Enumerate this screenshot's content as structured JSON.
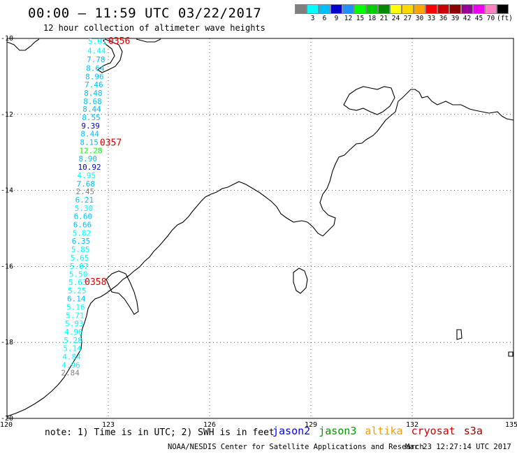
{
  "title": "00:00 – 11:59 UTC 03/22/2017",
  "subtitle": "12 hour collection of altimeter wave heights",
  "colorbar": {
    "colors": [
      "#7f7f7f",
      "#00ffff",
      "#00bfff",
      "#0000cd",
      "#1e90ff",
      "#00ff00",
      "#00cd00",
      "#008b00",
      "#ffff00",
      "#ffd700",
      "#ffa500",
      "#ff0000",
      "#cd0000",
      "#8b0000",
      "#990099",
      "#ee00ee",
      "#ff80c0",
      "#000000"
    ],
    "labels": [
      "",
      "3",
      "6",
      "9",
      "12",
      "15",
      "18",
      "21",
      "24",
      "27",
      "30",
      "33",
      "36",
      "39",
      "42",
      "45",
      "70",
      "(ft)"
    ]
  },
  "map": {
    "lon_ticks": [
      "120",
      "123",
      "126",
      "129",
      "132",
      "135"
    ],
    "lat_ticks": [
      "-10",
      "-12",
      "-14",
      "-16",
      "-18",
      "-20"
    ]
  },
  "time_labels": [
    {
      "text": "0356",
      "lon": 123.0,
      "lat": -10.07
    },
    {
      "text": "0357",
      "lon": 122.75,
      "lat": -12.75
    },
    {
      "text": "0358",
      "lon": 122.3,
      "lat": -16.42
    }
  ],
  "wave_values": [
    {
      "v": "5.01",
      "lon": 122.4,
      "lat": -10.07,
      "c": "#00ffff"
    },
    {
      "v": "4.44",
      "lon": 122.38,
      "lat": -10.32,
      "c": "#00ffff"
    },
    {
      "v": "7.78",
      "lon": 122.36,
      "lat": -10.55,
      "c": "#00bfff"
    },
    {
      "v": "8.64",
      "lon": 122.34,
      "lat": -10.78,
      "c": "#00bfff"
    },
    {
      "v": "8.96",
      "lon": 122.32,
      "lat": -11.0,
      "c": "#00bfff"
    },
    {
      "v": "7.46",
      "lon": 122.3,
      "lat": -11.21,
      "c": "#00bfff"
    },
    {
      "v": "8.48",
      "lon": 122.28,
      "lat": -11.43,
      "c": "#00bfff"
    },
    {
      "v": "8.68",
      "lon": 122.26,
      "lat": -11.65,
      "c": "#00bfff"
    },
    {
      "v": "8.44",
      "lon": 122.24,
      "lat": -11.86,
      "c": "#00bfff"
    },
    {
      "v": "8.55",
      "lon": 122.22,
      "lat": -12.08,
      "c": "#00bfff"
    },
    {
      "v": "9.39",
      "lon": 122.2,
      "lat": -12.3,
      "c": "#0000cd"
    },
    {
      "v": "8.44",
      "lon": 122.18,
      "lat": -12.51,
      "c": "#00bfff"
    },
    {
      "v": "8.15",
      "lon": 122.16,
      "lat": -12.73,
      "c": "#00bfff"
    },
    {
      "v": "12.28",
      "lon": 122.14,
      "lat": -12.95,
      "c": "#00ff00"
    },
    {
      "v": "8.90",
      "lon": 122.12,
      "lat": -13.16,
      "c": "#00bfff"
    },
    {
      "v": "10.92",
      "lon": 122.1,
      "lat": -13.38,
      "c": "#0000cd"
    },
    {
      "v": "4.95",
      "lon": 122.08,
      "lat": -13.6,
      "c": "#00ffff"
    },
    {
      "v": "7.68",
      "lon": 122.06,
      "lat": -13.82,
      "c": "#00bfff"
    },
    {
      "v": "2.45",
      "lon": 122.04,
      "lat": -14.03,
      "c": "#7f7f7f"
    },
    {
      "v": "6.21",
      "lon": 122.02,
      "lat": -14.25,
      "c": "#00bfff"
    },
    {
      "v": "5.30",
      "lon": 122.0,
      "lat": -14.47,
      "c": "#00ffff"
    },
    {
      "v": "6.60",
      "lon": 121.98,
      "lat": -14.68,
      "c": "#00bfff"
    },
    {
      "v": "6.66",
      "lon": 121.96,
      "lat": -14.9,
      "c": "#00bfff"
    },
    {
      "v": "5.82",
      "lon": 121.94,
      "lat": -15.12,
      "c": "#00ffff"
    },
    {
      "v": "6.35",
      "lon": 121.92,
      "lat": -15.33,
      "c": "#00bfff"
    },
    {
      "v": "5.85",
      "lon": 121.9,
      "lat": -15.55,
      "c": "#00ffff"
    },
    {
      "v": "5.65",
      "lon": 121.88,
      "lat": -15.77,
      "c": "#00ffff"
    },
    {
      "v": "5.07",
      "lon": 121.86,
      "lat": -15.99,
      "c": "#00ffff"
    },
    {
      "v": "5.50",
      "lon": 121.84,
      "lat": -16.2,
      "c": "#00ffff"
    },
    {
      "v": "5.63",
      "lon": 121.82,
      "lat": -16.42,
      "c": "#00ffff"
    },
    {
      "v": "5.25",
      "lon": 121.8,
      "lat": -16.64,
      "c": "#00ffff"
    },
    {
      "v": "6.14",
      "lon": 121.78,
      "lat": -16.85,
      "c": "#00bfff"
    },
    {
      "v": "5.16",
      "lon": 121.76,
      "lat": -17.07,
      "c": "#00ffff"
    },
    {
      "v": "5.71",
      "lon": 121.74,
      "lat": -17.29,
      "c": "#00ffff"
    },
    {
      "v": "5.93",
      "lon": 121.72,
      "lat": -17.5,
      "c": "#00ffff"
    },
    {
      "v": "4.96",
      "lon": 121.7,
      "lat": -17.72,
      "c": "#00ffff"
    },
    {
      "v": "5.28",
      "lon": 121.68,
      "lat": -17.94,
      "c": "#00ffff"
    },
    {
      "v": "5.14",
      "lon": 121.66,
      "lat": -18.15,
      "c": "#00ffff"
    },
    {
      "v": "4.84",
      "lon": 121.64,
      "lat": -18.37,
      "c": "#00ffff"
    },
    {
      "v": "4.96",
      "lon": 121.62,
      "lat": -18.59,
      "c": "#00ffff"
    },
    {
      "v": "2.84",
      "lon": 121.6,
      "lat": -18.8,
      "c": "#7f7f7f"
    }
  ],
  "footer": {
    "note": "note: 1) Time is in UTC; 2) SWH is in feet",
    "sats": [
      {
        "name": "jason2",
        "color": "#0000ff"
      },
      {
        "name": "jason3",
        "color": "#009900"
      },
      {
        "name": "altika",
        "color": "#ff9900"
      },
      {
        "name": "cryosat",
        "color": "#cc0000"
      },
      {
        "name": "s3a",
        "color": "#990000"
      }
    ],
    "credit": "NOAA/NESDIS Center for Satellite Applications and Research",
    "timestamp": "Mar 23 12:27:14 UTC 2017"
  }
}
